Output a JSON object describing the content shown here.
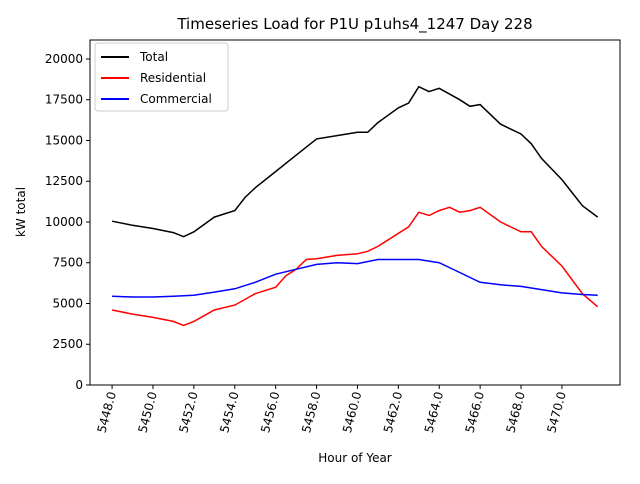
{
  "chart_data": {
    "type": "line",
    "title": "Timeseries Load for P1U p1uhs4_1247  Day 228",
    "xlabel": "Hour of Year",
    "ylabel": "kW total",
    "xlim": [
      5446.92,
      5472.84
    ],
    "ylim": [
      0,
      21165
    ],
    "xticks": [
      5448,
      5450,
      5452,
      5454,
      5456,
      5458,
      5460,
      5462,
      5464,
      5466,
      5468,
      5470
    ],
    "xtick_labels": [
      "5448.0",
      "5450.0",
      "5452.0",
      "5454.0",
      "5456.0",
      "5458.0",
      "5460.0",
      "5462.0",
      "5464.0",
      "5466.0",
      "5468.0",
      "5470.0"
    ],
    "yticks": [
      0,
      2500,
      5000,
      7500,
      10000,
      12500,
      15000,
      17500,
      20000
    ],
    "ytick_labels": [
      "0",
      "2500",
      "5000",
      "7500",
      "10000",
      "12500",
      "15000",
      "17500",
      "20000"
    ],
    "grid": false,
    "legend_position": "top-left",
    "series": [
      {
        "name": "Total",
        "color": "#000000",
        "x": [
          5448,
          5449,
          5450,
          5451,
          5451.5,
          5452,
          5453,
          5454,
          5454.5,
          5455,
          5456,
          5457,
          5458,
          5459,
          5460,
          5460.5,
          5461,
          5462,
          5462.5,
          5463,
          5463.5,
          5464,
          5465,
          5465.5,
          5466,
          5467,
          5468,
          5468.5,
          5469,
          5470,
          5471,
          5471.75
        ],
        "y": [
          10050,
          9800,
          9600,
          9350,
          9100,
          9400,
          10300,
          10700,
          11500,
          12100,
          13100,
          14100,
          15100,
          15300,
          15500,
          15500,
          16100,
          17000,
          17300,
          18300,
          18000,
          18200,
          17500,
          17100,
          17200,
          16000,
          15400,
          14800,
          13900,
          12600,
          11000,
          10300
        ]
      },
      {
        "name": "Residential",
        "color": "#ff0000",
        "x": [
          5448,
          5449,
          5450,
          5451,
          5451.5,
          5452,
          5453,
          5454,
          5455,
          5456,
          5456.5,
          5457,
          5457.5,
          5458,
          5459,
          5460,
          5460.5,
          5461,
          5462,
          5462.5,
          5463,
          5463.5,
          5464,
          5464.5,
          5465,
          5465.5,
          5466,
          5467,
          5468,
          5468.5,
          5469,
          5470,
          5471,
          5471.75
        ],
        "y": [
          4600,
          4350,
          4150,
          3900,
          3650,
          3900,
          4600,
          4900,
          5600,
          6000,
          6700,
          7100,
          7700,
          7750,
          7950,
          8050,
          8200,
          8500,
          9300,
          9700,
          10600,
          10400,
          10700,
          10900,
          10600,
          10700,
          10900,
          10000,
          9400,
          9400,
          8500,
          7300,
          5600,
          4800
        ]
      },
      {
        "name": "Commercial",
        "color": "#0000ff",
        "x": [
          5448,
          5449,
          5450,
          5451,
          5452,
          5453,
          5454,
          5455,
          5456,
          5457,
          5458,
          5459,
          5460,
          5461,
          5462,
          5463,
          5464,
          5465,
          5466,
          5467,
          5468,
          5469,
          5470,
          5471,
          5471.75
        ],
        "y": [
          5450,
          5400,
          5400,
          5450,
          5500,
          5700,
          5900,
          6300,
          6800,
          7100,
          7400,
          7500,
          7450,
          7700,
          7700,
          7700,
          7500,
          6900,
          6300,
          6150,
          6050,
          5850,
          5650,
          5550,
          5500
        ]
      }
    ]
  }
}
